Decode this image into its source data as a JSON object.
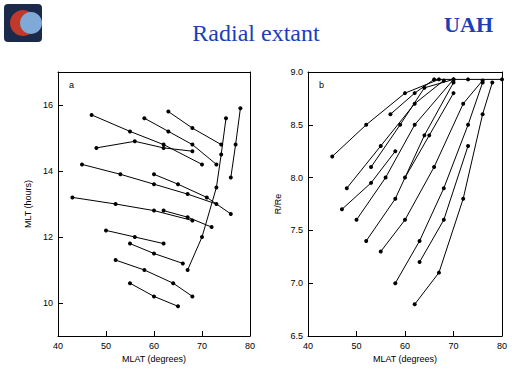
{
  "page": {
    "title": "Radial extant",
    "logo_text": "UAH"
  },
  "chart_data": [
    {
      "type": "line",
      "annotations": [
        "a"
      ],
      "x_label": "MLAT (degrees)",
      "y_label": "MLT (hours)",
      "xlim": [
        40,
        80
      ],
      "xticks": [
        40,
        50,
        60,
        70,
        80
      ],
      "ylim": [
        9,
        17
      ],
      "yticks": [
        10,
        12,
        14,
        16
      ],
      "grid": false,
      "marker": "circle",
      "series": [
        {
          "color": "#000000",
          "values": [
            [
              47,
              15.7
            ],
            [
              55,
              15.2
            ],
            [
              62,
              14.8
            ],
            [
              70,
              14.2
            ]
          ]
        },
        {
          "color": "#000000",
          "values": [
            [
              48,
              14.7
            ],
            [
              56,
              14.9
            ],
            [
              62,
              14.7
            ],
            [
              68,
              14.6
            ]
          ]
        },
        {
          "color": "#000000",
          "values": [
            [
              45,
              14.2
            ],
            [
              53,
              13.9
            ],
            [
              60,
              13.6
            ],
            [
              67,
              13.3
            ],
            [
              73,
              13.0
            ]
          ]
        },
        {
          "color": "#000000",
          "values": [
            [
              43,
              13.2
            ],
            [
              52,
              13.0
            ],
            [
              60,
              12.8
            ],
            [
              68,
              12.5
            ]
          ]
        },
        {
          "color": "#000000",
          "values": [
            [
              50,
              12.2
            ],
            [
              56,
              12.0
            ],
            [
              62,
              11.8
            ]
          ]
        },
        {
          "color": "#000000",
          "values": [
            [
              52,
              11.3
            ],
            [
              58,
              11.0
            ],
            [
              64,
              10.6
            ],
            [
              68,
              10.2
            ]
          ]
        },
        {
          "color": "#000000",
          "values": [
            [
              55,
              11.8
            ],
            [
              60,
              11.5
            ],
            [
              66,
              11.2
            ]
          ]
        },
        {
          "color": "#000000",
          "values": [
            [
              58,
              15.6
            ],
            [
              63,
              15.2
            ],
            [
              68,
              14.8
            ],
            [
              73,
              14.2
            ]
          ]
        },
        {
          "color": "#000000",
          "values": [
            [
              60,
              13.9
            ],
            [
              65,
              13.6
            ],
            [
              71,
              13.2
            ],
            [
              76,
              12.7
            ]
          ]
        },
        {
          "color": "#000000",
          "values": [
            [
              62,
              12.8
            ],
            [
              67,
              12.6
            ],
            [
              72,
              12.3
            ]
          ]
        },
        {
          "color": "#000000",
          "values": [
            [
              55,
              10.6
            ],
            [
              60,
              10.2
            ],
            [
              65,
              9.9
            ]
          ]
        },
        {
          "color": "#000000",
          "values": [
            [
              63,
              15.8
            ],
            [
              68,
              15.3
            ],
            [
              74,
              14.8
            ]
          ]
        },
        {
          "color": "#000000",
          "values": [
            [
              75,
              15.6
            ],
            [
              74,
              14.5
            ],
            [
              73,
              13.5
            ],
            [
              70,
              12.0
            ],
            [
              67,
              11.0
            ]
          ]
        },
        {
          "color": "#000000",
          "values": [
            [
              78,
              15.9
            ],
            [
              77,
              14.8
            ],
            [
              76,
              13.8
            ]
          ]
        }
      ]
    },
    {
      "type": "line",
      "annotations": [
        "b"
      ],
      "x_label": "MLAT (degrees)",
      "y_label": "R/Re",
      "xlim": [
        40,
        80
      ],
      "xticks": [
        40,
        50,
        60,
        70,
        80
      ],
      "ylim": [
        6.5,
        9
      ],
      "yticks": [
        6.5,
        {
          "value": 7,
          "label": "7.0"
        },
        7.5,
        {
          "value": 8,
          "label": "8.0"
        },
        8.5,
        {
          "value": 9,
          "label": "9.0"
        }
      ],
      "grid": false,
      "marker": "circle",
      "series": [
        {
          "color": "#000000",
          "values": [
            [
              45,
              8.2
            ],
            [
              52,
              8.5
            ],
            [
              60,
              8.8
            ],
            [
              67,
              8.93
            ]
          ]
        },
        {
          "color": "#000000",
          "values": [
            [
              48,
              7.9
            ],
            [
              55,
              8.3
            ],
            [
              62,
              8.7
            ],
            [
              68,
              8.92
            ]
          ]
        },
        {
          "color": "#000000",
          "values": [
            [
              50,
              7.6
            ],
            [
              56,
              8.0
            ],
            [
              62,
              8.5
            ],
            [
              70,
              8.93
            ]
          ]
        },
        {
          "color": "#000000",
          "values": [
            [
              52,
              7.4
            ],
            [
              58,
              7.8
            ],
            [
              64,
              8.4
            ],
            [
              70,
              8.9
            ]
          ]
        },
        {
          "color": "#000000",
          "values": [
            [
              55,
              7.3
            ],
            [
              60,
              7.6
            ],
            [
              66,
              8.1
            ],
            [
              72,
              8.7
            ],
            [
              76,
              8.92
            ]
          ]
        },
        {
          "color": "#000000",
          "values": [
            [
              58,
              7.0
            ],
            [
              63,
              7.4
            ],
            [
              68,
              7.9
            ],
            [
              73,
              8.5
            ],
            [
              76,
              8.9
            ]
          ]
        },
        {
          "color": "#000000",
          "values": [
            [
              62,
              6.8
            ],
            [
              67,
              7.1
            ],
            [
              72,
              7.8
            ],
            [
              76,
              8.6
            ],
            [
              78,
              8.9
            ]
          ]
        },
        {
          "color": "#000000",
          "values": [
            [
              57,
              8.6
            ],
            [
              62,
              8.8
            ],
            [
              66,
              8.93
            ],
            [
              73,
              8.93
            ],
            [
              80,
              8.93
            ]
          ]
        },
        {
          "color": "#000000",
          "values": [
            [
              53,
              8.1
            ],
            [
              59,
              8.5
            ],
            [
              64,
              8.85
            ],
            [
              70,
              8.93
            ]
          ]
        },
        {
          "color": "#000000",
          "values": [
            [
              60,
              8.0
            ],
            [
              65,
              8.4
            ],
            [
              70,
              8.8
            ]
          ]
        },
        {
          "color": "#000000",
          "values": [
            [
              47,
              7.7
            ],
            [
              53,
              7.95
            ],
            [
              58,
              8.25
            ]
          ]
        },
        {
          "color": "#000000",
          "values": [
            [
              63,
              7.2
            ],
            [
              68,
              7.6
            ],
            [
              73,
              8.3
            ]
          ]
        }
      ]
    }
  ]
}
